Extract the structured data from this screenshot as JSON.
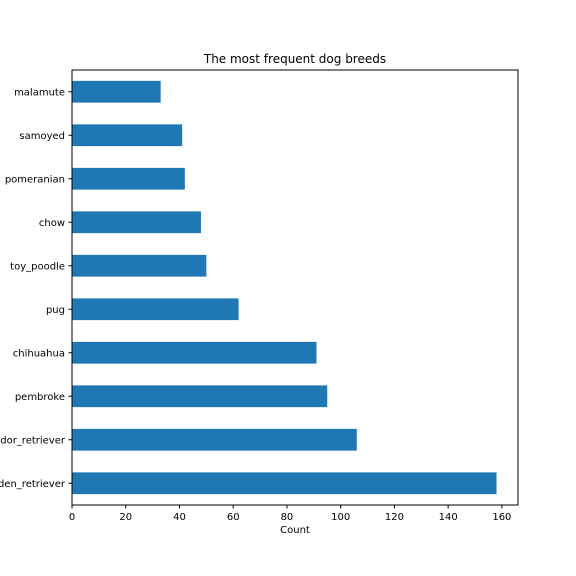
{
  "chart_data": {
    "type": "bar",
    "orientation": "horizontal",
    "title": "The most frequent dog breeds",
    "xlabel": "Count",
    "ylabel": "",
    "categories": [
      "golden_retriever",
      "labrador_retriever",
      "pembroke",
      "chihuahua",
      "pug",
      "toy_poodle",
      "chow",
      "pomeranian",
      "samoyed",
      "malamute"
    ],
    "values": [
      158,
      106,
      95,
      91,
      62,
      50,
      48,
      42,
      41,
      33
    ],
    "xlim": [
      0,
      166
    ],
    "xticks": [
      0,
      20,
      40,
      60,
      80,
      100,
      120,
      140,
      160
    ],
    "grid": false,
    "bar_color": "#1f77b4"
  }
}
